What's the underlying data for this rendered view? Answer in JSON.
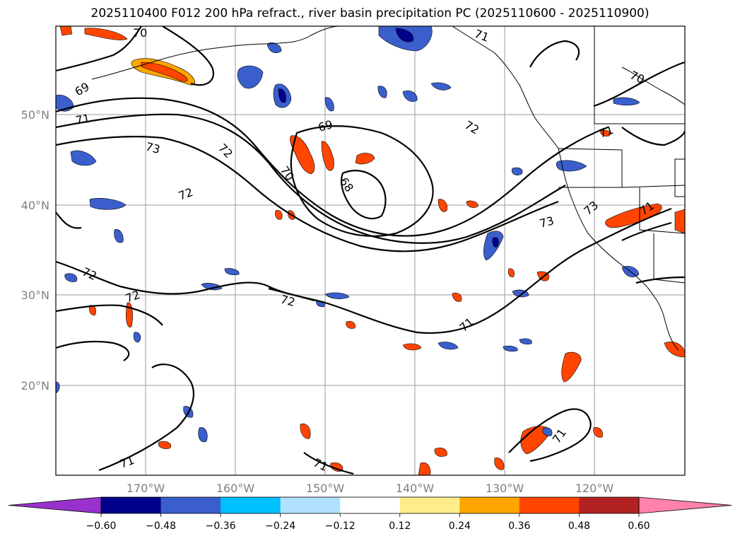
{
  "title": "2025110400 F012 200 hPa refract., river basin precipitation PC (2025110600 - 2025110900)",
  "lat_labels": [
    "50°N",
    "40°N",
    "30°N",
    "20°N"
  ],
  "lon_labels": [
    "170°W",
    "160°W",
    "150°W",
    "140°W",
    "130°W",
    "120°W"
  ],
  "colorbar": {
    "colors": [
      "#9932cc",
      "#00008b",
      "#3a5fcd",
      "#00bfff",
      "#b0e2ff",
      "#ffffff",
      "#ffec8b",
      "#ffa500",
      "#ff4500",
      "#b22222",
      "#ff82ab"
    ],
    "tick_labels": [
      "−0.60",
      "−0.48",
      "−0.36",
      "−0.24",
      "−0.12",
      "0.12",
      "0.24",
      "0.36",
      "0.48",
      "0.60"
    ]
  },
  "contour_labels": [
    "70",
    "71",
    "69",
    "71",
    "73",
    "72",
    "69",
    "72",
    "70",
    "68",
    "72",
    "73",
    "73",
    "71",
    "71",
    "72",
    "72",
    "72",
    "71",
    "71",
    "71",
    "71",
    "70"
  ],
  "feature_colors": {
    "positive_dark": "#ff4500",
    "positive_mid": "#ffa500",
    "positive_light": "#ffec8b",
    "negative_dark": "#00008b",
    "negative_mid": "#3a5fcd",
    "negative_light": "#00bfff"
  }
}
